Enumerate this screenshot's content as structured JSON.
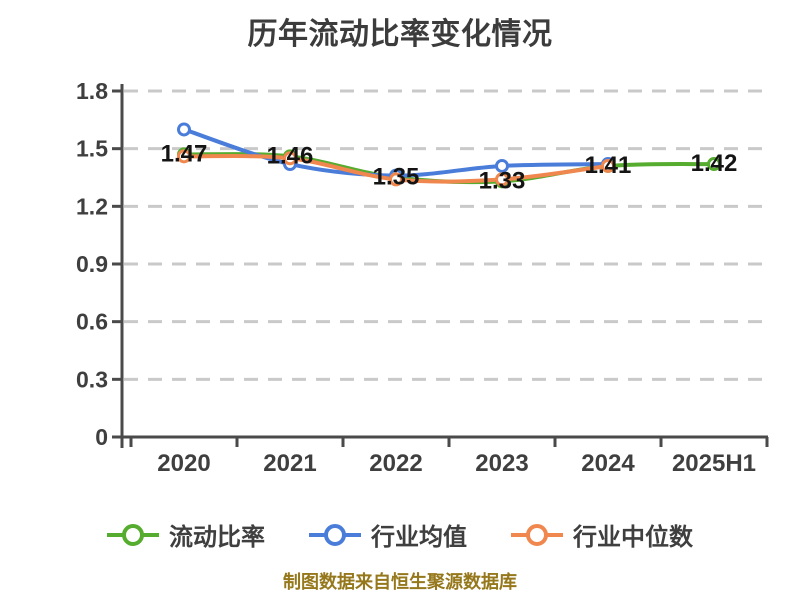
{
  "chart_data": {
    "type": "line",
    "title": "历年流动比率变化情况",
    "categories": [
      "2020",
      "2021",
      "2022",
      "2023",
      "2024",
      "2025H1"
    ],
    "series": [
      {
        "name": "流动比率",
        "color": "#56ac2e",
        "values": [
          1.47,
          1.46,
          1.35,
          1.33,
          1.41,
          1.42
        ]
      },
      {
        "name": "行业均值",
        "color": "#4a7dd9",
        "values": [
          1.6,
          1.42,
          1.36,
          1.41,
          1.42,
          null
        ]
      },
      {
        "name": "行业中位数",
        "color": "#f0874e",
        "values": [
          1.46,
          1.45,
          1.34,
          1.34,
          1.41,
          null
        ]
      }
    ],
    "point_labels": [
      "1.47",
      "1.46",
      "1.35",
      "1.33",
      "1.41",
      "1.42"
    ],
    "ylim": [
      0,
      1.8
    ],
    "yticks": [
      0,
      0.3,
      0.6,
      0.9,
      1.2,
      1.5,
      1.8
    ],
    "grid": "horizontal-dashed",
    "legend_position": "bottom",
    "caption": "制图数据来自恒生聚源数据库",
    "colors": {
      "grid": "#c9c9c9",
      "axis": "#4a4a4a",
      "tick_label": "#3f3f3f",
      "point_label": "#141414",
      "title": "#3c3c3c",
      "caption": "#96781c",
      "background": "#ffffff"
    }
  }
}
